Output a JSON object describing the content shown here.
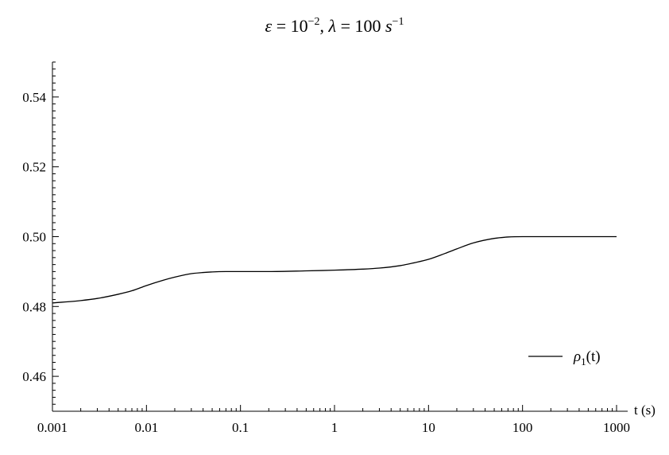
{
  "chart_data": {
    "type": "line",
    "title": {
      "eps_sym": "ε",
      "eq": " = 10",
      "eps_exp": "−2",
      "sep": ",  ",
      "lambda_sym": "λ",
      "lambda_eq": " = 100 ",
      "unit_s": "s",
      "unit_exp": "−1"
    },
    "xlabel": "t (s)",
    "ylabel": "",
    "x_scale": "log",
    "xlim": [
      0.001,
      1000
    ],
    "ylim": [
      0.45,
      0.55
    ],
    "x_ticks": [
      0.001,
      0.01,
      0.1,
      1,
      10,
      100,
      1000
    ],
    "x_tick_labels": [
      "0.001",
      "0.01",
      "0.1",
      "1",
      "10",
      "100",
      "1000"
    ],
    "y_ticks": [
      0.46,
      0.48,
      0.5,
      0.52,
      0.54
    ],
    "y_tick_labels": [
      "0.46",
      "0.48",
      "0.50",
      "0.52",
      "0.54"
    ],
    "grid": false,
    "legend": {
      "placement": "right",
      "entries": [
        {
          "rho": "ρ",
          "sub": "1",
          "rest": "(t)"
        }
      ]
    },
    "series": [
      {
        "color": "#000000",
        "x": [
          0.001,
          0.002,
          0.003,
          0.005,
          0.007,
          0.01,
          0.015,
          0.02,
          0.03,
          0.05,
          0.07,
          0.1,
          0.2,
          0.5,
          1,
          2,
          3,
          5,
          7,
          10,
          15,
          20,
          30,
          50,
          70,
          100,
          150,
          200,
          500,
          1000
        ],
        "y": [
          0.481,
          0.4817,
          0.4823,
          0.4835,
          0.4845,
          0.486,
          0.4875,
          0.4884,
          0.4894,
          0.4899,
          0.49,
          0.49,
          0.49,
          0.4902,
          0.4904,
          0.4907,
          0.491,
          0.4917,
          0.4925,
          0.4935,
          0.4952,
          0.4965,
          0.4982,
          0.4995,
          0.4999,
          0.5,
          0.5,
          0.5,
          0.5,
          0.5
        ]
      }
    ]
  }
}
